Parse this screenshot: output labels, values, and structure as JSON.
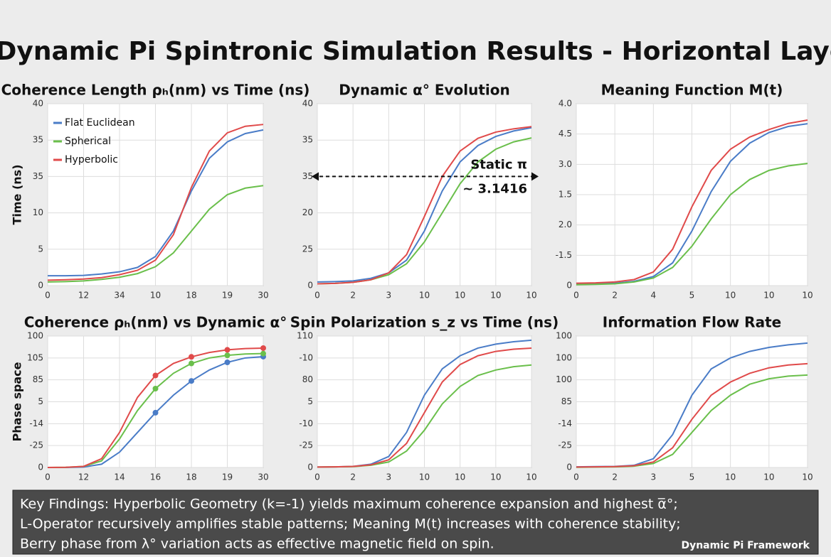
{
  "title": "π° Dynamic Pi Spintronic Simulation Results - Horizontal Layout",
  "footer": {
    "lines": [
      "Key Findings: Hyperbolic Geometry (k=-1) yields maximum coherence expansion and highest α̅°;",
      "L-Operator recursively amplifies stable patterns; Meaning M(t) increases with coherence stability;",
      "Berry phase from λ° variation acts as effective magnetic field on spin."
    ],
    "brand": "Dynamic Pi Framework"
  },
  "chart_data": [
    {
      "type": "line",
      "title": "Coherence Length ρₕ(nm) vs Time (ns)",
      "y_label": "Time (ns)",
      "grid": true,
      "legend": "upper left",
      "x": [
        0,
        0.5,
        1,
        1.5,
        2,
        2.5,
        3,
        3.5,
        4,
        4.5,
        5,
        5.5,
        6
      ],
      "xlim": [
        0,
        6
      ],
      "ylim": [
        0,
        5
      ],
      "xticks": [
        0,
        {
          "value": 1,
          "label": "12"
        },
        {
          "value": 2,
          "label": "34"
        },
        {
          "value": 3,
          "label": "10"
        },
        {
          "value": 4,
          "label": "18"
        },
        {
          "value": 5,
          "label": "19"
        },
        {
          "value": 6,
          "label": "30"
        }
      ],
      "yticks": [
        0,
        {
          "value": 1,
          "label": "5"
        },
        {
          "value": 2,
          "label": "10"
        },
        {
          "value": 3,
          "label": "35"
        },
        {
          "value": 4,
          "label": "35"
        },
        {
          "value": 5,
          "label": "40"
        }
      ],
      "series": [
        {
          "name": "Flat Euclidean",
          "color": "#4a7cc7",
          "values": [
            0.27,
            0.27,
            0.28,
            0.32,
            0.38,
            0.5,
            0.8,
            1.5,
            2.6,
            3.5,
            3.95,
            4.18,
            4.28
          ]
        },
        {
          "name": "Spherical",
          "color": "#6abf4b",
          "values": [
            0.1,
            0.11,
            0.13,
            0.17,
            0.23,
            0.33,
            0.52,
            0.9,
            1.5,
            2.1,
            2.5,
            2.68,
            2.75
          ]
        },
        {
          "name": "Hyperbolic",
          "color": "#e04a4a",
          "values": [
            0.15,
            0.16,
            0.18,
            0.22,
            0.3,
            0.42,
            0.7,
            1.4,
            2.7,
            3.7,
            4.2,
            4.38,
            4.43
          ]
        }
      ]
    },
    {
      "type": "line",
      "title": "Dynamic α° Evolution",
      "grid": true,
      "annotation": [
        "Static π",
        "~ 3.1416"
      ],
      "x": [
        0,
        0.5,
        1,
        1.5,
        2,
        2.5,
        3,
        3.5,
        4,
        4.5,
        5,
        5.5,
        6
      ],
      "xlim": [
        0,
        6
      ],
      "ylim": [
        0,
        5
      ],
      "xticks": [
        0,
        {
          "value": 1,
          "label": "2"
        },
        {
          "value": 2,
          "label": "3"
        },
        {
          "value": 3,
          "label": "10"
        },
        {
          "value": 4,
          "label": "10"
        },
        {
          "value": 5,
          "label": "10"
        },
        {
          "value": 6,
          "label": "10"
        }
      ],
      "yticks": [
        0,
        {
          "value": 1,
          "label": "25"
        },
        {
          "value": 2,
          "label": "20"
        },
        {
          "value": 3,
          "label": "35"
        },
        {
          "value": 4,
          "label": "35"
        },
        {
          "value": 5,
          "label": "40"
        }
      ],
      "series": [
        {
          "color": "#4a7cc7",
          "values": [
            0.1,
            0.11,
            0.13,
            0.2,
            0.35,
            0.7,
            1.5,
            2.6,
            3.4,
            3.85,
            4.1,
            4.25,
            4.34
          ]
        },
        {
          "color": "#6abf4b",
          "values": [
            0.05,
            0.06,
            0.09,
            0.16,
            0.3,
            0.6,
            1.2,
            2.0,
            2.8,
            3.4,
            3.75,
            3.95,
            4.06
          ]
        },
        {
          "color": "#e04a4a",
          "values": [
            0.05,
            0.06,
            0.09,
            0.16,
            0.35,
            0.85,
            1.9,
            3.0,
            3.7,
            4.05,
            4.22,
            4.31,
            4.37
          ]
        }
      ]
    },
    {
      "type": "line",
      "title": "Meaning Function M(t)",
      "grid": true,
      "x": [
        0,
        0.5,
        1,
        1.5,
        2,
        2.5,
        3,
        3.5,
        4,
        4.5,
        5,
        5.5,
        6
      ],
      "xlim": [
        0,
        6
      ],
      "ylim": [
        0,
        6
      ],
      "xticks": [
        0,
        {
          "value": 1,
          "label": "2"
        },
        {
          "value": 2,
          "label": "4"
        },
        {
          "value": 3,
          "label": "5"
        },
        {
          "value": 4,
          "label": "10"
        },
        {
          "value": 5,
          "label": "10"
        },
        {
          "value": 6,
          "label": "10"
        }
      ],
      "yticks": [
        0,
        {
          "value": 1,
          "label": "-1.5"
        },
        {
          "value": 2,
          "label": "2.0"
        },
        {
          "value": 3,
          "label": "1.5"
        },
        {
          "value": 4,
          "label": "3.0"
        },
        {
          "value": 5,
          "label": "4.5"
        },
        {
          "value": 6,
          "label": "4.0"
        }
      ],
      "series": [
        {
          "color": "#4a7cc7",
          "values": [
            0.05,
            0.06,
            0.08,
            0.14,
            0.3,
            0.75,
            1.8,
            3.1,
            4.1,
            4.7,
            5.05,
            5.25,
            5.34
          ]
        },
        {
          "color": "#6abf4b",
          "values": [
            0.03,
            0.04,
            0.06,
            0.12,
            0.25,
            0.6,
            1.3,
            2.2,
            3.0,
            3.5,
            3.8,
            3.95,
            4.03
          ]
        },
        {
          "color": "#e04a4a",
          "values": [
            0.08,
            0.09,
            0.12,
            0.2,
            0.45,
            1.2,
            2.6,
            3.8,
            4.5,
            4.9,
            5.15,
            5.35,
            5.46
          ]
        }
      ]
    },
    {
      "type": "line",
      "title": "Coherence ρₕ(nm) vs Dynamic α°",
      "y_label": "Phase space",
      "grid": true,
      "markers": true,
      "x": [
        0,
        0.5,
        1,
        1.5,
        2,
        2.5,
        3,
        3.5,
        4,
        4.5,
        5,
        5.5,
        6
      ],
      "xlim": [
        0,
        6
      ],
      "ylim": [
        0,
        6
      ],
      "xticks": [
        0,
        {
          "value": 1,
          "label": "12"
        },
        {
          "value": 2,
          "label": "14"
        },
        {
          "value": 3,
          "label": "16"
        },
        {
          "value": 4,
          "label": "18"
        },
        {
          "value": 5,
          "label": "19"
        },
        {
          "value": 6,
          "label": "30"
        }
      ],
      "yticks": [
        0,
        {
          "value": 1,
          "label": "-25"
        },
        {
          "value": 2,
          "label": "-14"
        },
        {
          "value": 3,
          "label": "5"
        },
        {
          "value": 4,
          "label": "85"
        },
        {
          "value": 5,
          "label": "105"
        },
        {
          "value": 6,
          "label": "100"
        }
      ],
      "series": [
        {
          "color": "#4a7cc7",
          "values": [
            0,
            0,
            0.02,
            0.15,
            0.7,
            1.6,
            2.5,
            3.3,
            3.95,
            4.45,
            4.8,
            5.0,
            5.06
          ]
        },
        {
          "color": "#6abf4b",
          "values": [
            0,
            0.01,
            0.05,
            0.3,
            1.3,
            2.6,
            3.6,
            4.3,
            4.75,
            5.0,
            5.12,
            5.18,
            5.2
          ]
        },
        {
          "color": "#e04a4a",
          "values": [
            0,
            0.01,
            0.05,
            0.4,
            1.6,
            3.2,
            4.2,
            4.75,
            5.05,
            5.25,
            5.37,
            5.43,
            5.45
          ]
        }
      ]
    },
    {
      "type": "line",
      "title": "Spin Polarization s_z vs Time (ns)",
      "grid": true,
      "x": [
        0,
        0.5,
        1,
        1.5,
        2,
        2.5,
        3,
        3.5,
        4,
        4.5,
        5,
        5.5,
        6
      ],
      "xlim": [
        0,
        6
      ],
      "ylim": [
        0,
        6
      ],
      "xticks": [
        0,
        {
          "value": 1,
          "label": "2"
        },
        {
          "value": 2,
          "label": "3"
        },
        {
          "value": 3,
          "label": "10"
        },
        {
          "value": 4,
          "label": "10"
        },
        {
          "value": 5,
          "label": "10"
        },
        {
          "value": 6,
          "label": "10"
        }
      ],
      "yticks": [
        0,
        {
          "value": 1,
          "label": "-25"
        },
        {
          "value": 2,
          "label": "-10"
        },
        {
          "value": 3,
          "label": "5"
        },
        {
          "value": 4,
          "label": "80"
        },
        {
          "value": 5,
          "label": "-10"
        },
        {
          "value": 6,
          "label": "110"
        }
      ],
      "series": [
        {
          "color": "#4a7cc7",
          "values": [
            0.02,
            0.03,
            0.05,
            0.15,
            0.5,
            1.6,
            3.3,
            4.5,
            5.1,
            5.45,
            5.63,
            5.74,
            5.81
          ]
        },
        {
          "color": "#6abf4b",
          "values": [
            0.02,
            0.03,
            0.04,
            0.1,
            0.25,
            0.75,
            1.7,
            2.9,
            3.7,
            4.2,
            4.45,
            4.6,
            4.68
          ]
        },
        {
          "color": "#e04a4a",
          "values": [
            0.02,
            0.03,
            0.05,
            0.12,
            0.35,
            1.1,
            2.5,
            3.9,
            4.7,
            5.1,
            5.3,
            5.4,
            5.45
          ]
        }
      ]
    },
    {
      "type": "line",
      "title": "Information Flow Rate",
      "grid": true,
      "x": [
        0,
        0.5,
        1,
        1.5,
        2,
        2.5,
        3,
        3.5,
        4,
        4.5,
        5,
        5.5,
        6
      ],
      "xlim": [
        0,
        6
      ],
      "ylim": [
        0,
        6
      ],
      "xticks": [
        0,
        {
          "value": 1,
          "label": "2"
        },
        {
          "value": 2,
          "label": "3"
        },
        {
          "value": 3,
          "label": "5"
        },
        {
          "value": 4,
          "label": "10"
        },
        {
          "value": 5,
          "label": "10"
        },
        {
          "value": 6,
          "label": "10"
        }
      ],
      "yticks": [
        0,
        {
          "value": 1,
          "label": "-25"
        },
        {
          "value": 2,
          "label": "-14"
        },
        {
          "value": 3,
          "label": "85"
        },
        {
          "value": 4,
          "label": "100"
        },
        {
          "value": 5,
          "label": "100"
        },
        {
          "value": 6,
          "label": "100"
        }
      ],
      "series": [
        {
          "color": "#4a7cc7",
          "values": [
            0.03,
            0.04,
            0.05,
            0.1,
            0.4,
            1.5,
            3.3,
            4.5,
            5.0,
            5.3,
            5.48,
            5.6,
            5.68
          ]
        },
        {
          "color": "#6abf4b",
          "values": [
            0.01,
            0.02,
            0.03,
            0.06,
            0.18,
            0.6,
            1.6,
            2.6,
            3.3,
            3.8,
            4.05,
            4.17,
            4.22
          ]
        },
        {
          "color": "#e04a4a",
          "values": [
            0.02,
            0.03,
            0.04,
            0.08,
            0.25,
            0.9,
            2.2,
            3.3,
            3.9,
            4.3,
            4.55,
            4.68,
            4.74
          ]
        }
      ]
    }
  ]
}
